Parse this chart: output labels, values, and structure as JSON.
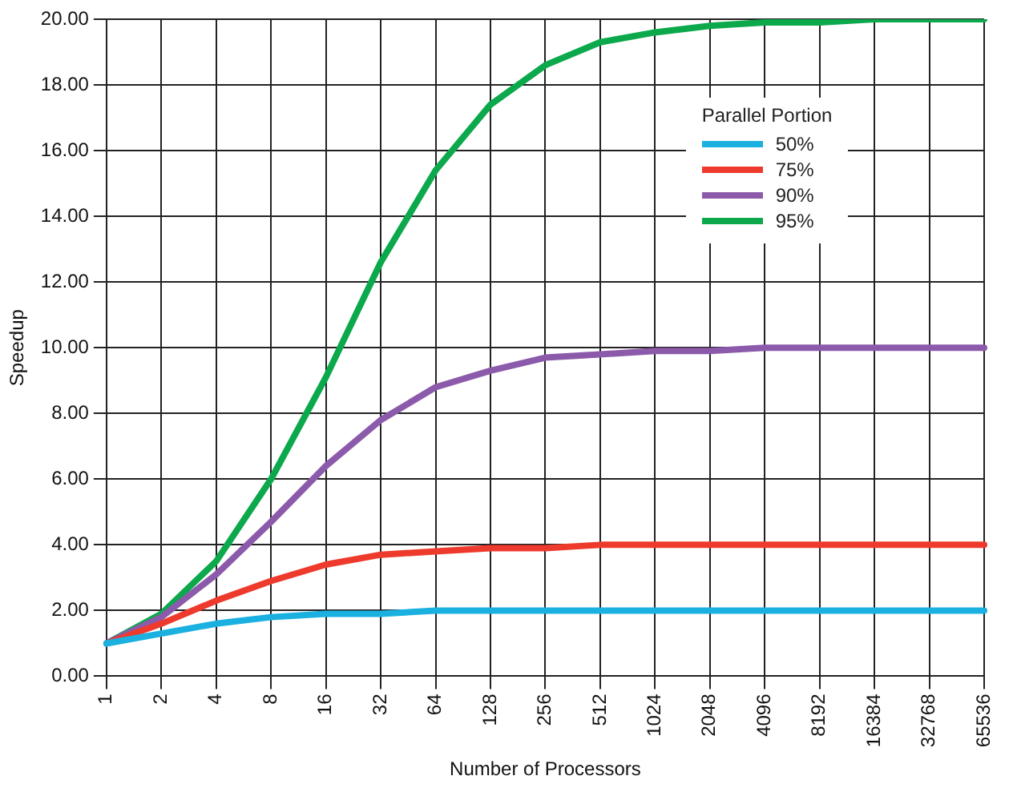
{
  "chart_data": {
    "type": "line",
    "xlabel": "Number of Processors",
    "ylabel": "Speedup",
    "legend_title": "Parallel Portion",
    "legend": "top right",
    "grid": true,
    "marker": "none",
    "line_style": "solid",
    "categories": [
      "1",
      "2",
      "4",
      "8",
      "16",
      "32",
      "64",
      "128",
      "256",
      "512",
      "1024",
      "2048",
      "4096",
      "8192",
      "16384",
      "32768",
      "65536"
    ],
    "ylim": [
      0,
      20
    ],
    "yticks": [
      {
        "value": 0,
        "label": "0.00"
      },
      {
        "value": 2,
        "label": "2.00"
      },
      {
        "value": 4,
        "label": "4.00"
      },
      {
        "value": 6,
        "label": "6.00"
      },
      {
        "value": 8,
        "label": "8.00"
      },
      {
        "value": 10,
        "label": "10.00"
      },
      {
        "value": 12,
        "label": "12.00"
      },
      {
        "value": 14,
        "label": "14.00"
      },
      {
        "value": 16,
        "label": "16.00"
      },
      {
        "value": 18,
        "label": "18.00"
      },
      {
        "value": 20,
        "label": "20.00"
      }
    ],
    "series": [
      {
        "name": "50%",
        "color": "#1ab0e0",
        "values": [
          1,
          1.3,
          1.6,
          1.8,
          1.9,
          1.9,
          2,
          2,
          2,
          2,
          2,
          2,
          2,
          2,
          2,
          2,
          2
        ]
      },
      {
        "name": "75%",
        "color": "#ee3a2c",
        "values": [
          1,
          1.6,
          2.3,
          2.9,
          3.4,
          3.7,
          3.8,
          3.9,
          3.9,
          4,
          4,
          4,
          4,
          4,
          4,
          4,
          4
        ]
      },
      {
        "name": "90%",
        "color": "#8c5aaa",
        "values": [
          1,
          1.8,
          3.1,
          4.7,
          6.4,
          7.8,
          8.8,
          9.3,
          9.7,
          9.8,
          9.9,
          9.9,
          10,
          10,
          10,
          10,
          10
        ]
      },
      {
        "name": "95%",
        "color": "#0ca84c",
        "values": [
          1,
          1.9,
          3.5,
          6,
          9.1,
          12.6,
          15.4,
          17.4,
          18.6,
          19.3,
          19.6,
          19.8,
          19.9,
          19.9,
          20,
          20,
          20
        ]
      }
    ]
  }
}
